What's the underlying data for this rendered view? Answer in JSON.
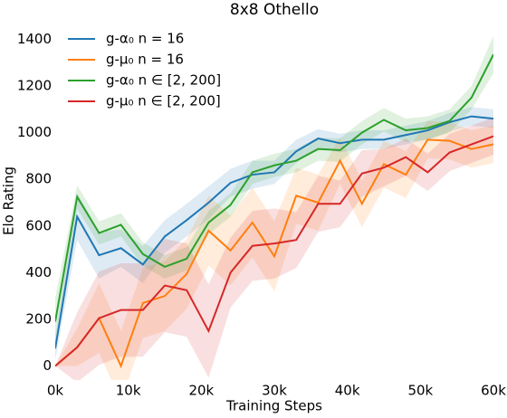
{
  "chart_data": {
    "type": "line",
    "title": "8x8 Othello",
    "xlabel": "Training Steps",
    "ylabel": "Elo Rating",
    "x": [
      0,
      3000,
      6000,
      9000,
      12000,
      15000,
      18000,
      21000,
      24000,
      27000,
      30000,
      33000,
      36000,
      39000,
      42000,
      45000,
      48000,
      51000,
      54000,
      57000,
      60000
    ],
    "xlim": [
      0,
      60000
    ],
    "xticks": [
      {
        "value": 0,
        "label": "0k"
      },
      {
        "value": 10000,
        "label": "10k"
      },
      {
        "value": 20000,
        "label": "20k"
      },
      {
        "value": 30000,
        "label": "30k"
      },
      {
        "value": 40000,
        "label": "40k"
      },
      {
        "value": 50000,
        "label": "50k"
      },
      {
        "value": 60000,
        "label": "60k"
      }
    ],
    "ylim": [
      -60,
      1460
    ],
    "yticks": [
      0,
      200,
      400,
      600,
      800,
      1000,
      1200,
      1400
    ],
    "grid": false,
    "legend": "upper left",
    "series": [
      {
        "name": "g-α₀ n = 16",
        "color": "#1f77b4",
        "values": [
          75,
          640,
          475,
          505,
          435,
          555,
          625,
          700,
          785,
          820,
          830,
          920,
          975,
          955,
          970,
          970,
          990,
          1010,
          1045,
          1070,
          1060
        ],
        "lower": [
          25,
          540,
          375,
          425,
          355,
          485,
          555,
          630,
          725,
          760,
          780,
          870,
          935,
          915,
          930,
          930,
          950,
          970,
          1005,
          1030,
          1020
        ],
        "upper": [
          125,
          740,
          575,
          585,
          515,
          625,
          695,
          770,
          845,
          880,
          880,
          970,
          1015,
          995,
          1010,
          1010,
          1030,
          1050,
          1085,
          1110,
          1100
        ]
      },
      {
        "name": "g-μ₀ n = 16",
        "color": "#ff7f0e",
        "values": [
          0,
          80,
          205,
          0,
          270,
          300,
          395,
          580,
          495,
          615,
          470,
          730,
          700,
          880,
          695,
          865,
          820,
          970,
          965,
          930,
          950
        ],
        "lower": [
          0,
          0,
          55,
          -150,
          120,
          150,
          245,
          430,
          345,
          465,
          320,
          610,
          580,
          780,
          595,
          765,
          720,
          890,
          885,
          850,
          870
        ],
        "upper": [
          0,
          160,
          355,
          150,
          420,
          450,
          545,
          730,
          645,
          765,
          620,
          850,
          820,
          980,
          795,
          965,
          920,
          1050,
          1045,
          1010,
          1030
        ]
      },
      {
        "name": "g-α₀ n ∈ [2, 200]",
        "color": "#2ca02c",
        "values": [
          190,
          725,
          570,
          605,
          480,
          425,
          460,
          615,
          690,
          830,
          860,
          880,
          930,
          925,
          1000,
          1055,
          1010,
          1020,
          1050,
          1150,
          1335
        ],
        "lower": [
          90,
          675,
          520,
          555,
          430,
          375,
          410,
          565,
          640,
          780,
          810,
          830,
          880,
          875,
          950,
          1005,
          960,
          970,
          1000,
          1100,
          1255
        ],
        "upper": [
          290,
          775,
          620,
          655,
          530,
          475,
          510,
          665,
          740,
          880,
          910,
          930,
          980,
          975,
          1050,
          1105,
          1060,
          1070,
          1100,
          1200,
          1415
        ]
      },
      {
        "name": "g-μ₀ n ∈ [2, 200]",
        "color": "#d62728",
        "values": [
          0,
          80,
          205,
          240,
          240,
          345,
          325,
          150,
          400,
          515,
          525,
          540,
          695,
          695,
          825,
          850,
          895,
          830,
          915,
          950,
          985
        ],
        "lower": [
          0,
          -70,
          5,
          40,
          40,
          145,
          125,
          -50,
          250,
          365,
          375,
          420,
          575,
          595,
          725,
          770,
          815,
          750,
          835,
          870,
          905
        ],
        "upper": [
          0,
          230,
          405,
          440,
          440,
          545,
          525,
          350,
          550,
          665,
          675,
          660,
          815,
          795,
          925,
          930,
          975,
          910,
          995,
          1030,
          1065
        ]
      }
    ]
  }
}
